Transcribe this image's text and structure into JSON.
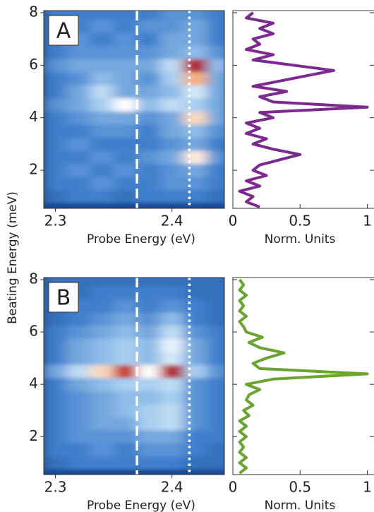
{
  "chart_data": [
    {
      "type": "heatmap",
      "panel_label": "A",
      "xlabel": "Probe Energy (eV)",
      "ylabel": "Beating Energy (meV)",
      "xlim": [
        2.29,
        2.445
      ],
      "ylim": [
        0.55,
        8.08
      ],
      "xticks": [
        2.3,
        2.4
      ],
      "yticks": [
        2,
        4,
        6,
        8
      ],
      "colormap": [
        "#1a4690",
        "#3f7fcc",
        "#a9cff0",
        "#ffffff",
        "#f5b07a",
        "#b01010"
      ],
      "vlines": [
        {
          "value": 2.37,
          "style": "dashed"
        },
        {
          "value": 2.415,
          "style": "dotted"
        }
      ],
      "x": [
        2.3,
        2.32,
        2.34,
        2.36,
        2.38,
        2.4,
        2.42,
        2.44
      ],
      "y": [
        1.0,
        1.5,
        2.0,
        2.5,
        3.0,
        3.5,
        4.0,
        4.5,
        5.0,
        5.5,
        6.0,
        6.5,
        7.0,
        7.5,
        8.0
      ],
      "z": [
        [
          0.15,
          0.2,
          0.2,
          0.15,
          0.2,
          0.2,
          0.2,
          0.15
        ],
        [
          0.2,
          0.2,
          0.25,
          0.2,
          0.2,
          0.25,
          0.25,
          0.2
        ],
        [
          0.2,
          0.25,
          0.2,
          0.25,
          0.2,
          0.25,
          0.3,
          0.2
        ],
        [
          0.2,
          0.2,
          0.25,
          0.2,
          0.25,
          0.3,
          0.65,
          0.25
        ],
        [
          0.2,
          0.25,
          0.2,
          0.2,
          0.2,
          0.25,
          0.3,
          0.2
        ],
        [
          0.2,
          0.2,
          0.25,
          0.25,
          0.2,
          0.3,
          0.35,
          0.25
        ],
        [
          0.2,
          0.25,
          0.3,
          0.3,
          0.25,
          0.3,
          0.7,
          0.3
        ],
        [
          0.25,
          0.3,
          0.4,
          0.6,
          0.35,
          0.45,
          0.4,
          0.3
        ],
        [
          0.2,
          0.3,
          0.45,
          0.3,
          0.3,
          0.35,
          0.5,
          0.3
        ],
        [
          0.2,
          0.25,
          0.35,
          0.3,
          0.25,
          0.4,
          0.8,
          0.3
        ],
        [
          0.25,
          0.3,
          0.3,
          0.3,
          0.3,
          0.45,
          1.0,
          0.35
        ],
        [
          0.2,
          0.25,
          0.25,
          0.25,
          0.25,
          0.3,
          0.35,
          0.25
        ],
        [
          0.2,
          0.25,
          0.2,
          0.25,
          0.2,
          0.3,
          0.3,
          0.2
        ],
        [
          0.2,
          0.2,
          0.25,
          0.2,
          0.25,
          0.25,
          0.3,
          0.2
        ],
        [
          0.2,
          0.2,
          0.2,
          0.2,
          0.2,
          0.25,
          0.25,
          0.2
        ]
      ]
    },
    {
      "type": "line",
      "xlabel": "Norm. Units",
      "xlim": [
        0,
        1.05
      ],
      "ylim": [
        0.55,
        8.08
      ],
      "xticks": [
        0,
        0.5,
        1
      ],
      "yticks": [
        2,
        4,
        6,
        8
      ],
      "y": [
        0.6,
        0.8,
        1.0,
        1.2,
        1.4,
        1.6,
        1.8,
        2.0,
        2.2,
        2.4,
        2.6,
        2.8,
        3.0,
        3.2,
        3.4,
        3.6,
        3.8,
        4.0,
        4.2,
        4.4,
        4.6,
        4.8,
        5.0,
        5.2,
        5.4,
        5.6,
        5.8,
        6.0,
        6.2,
        6.4,
        6.6,
        6.8,
        7.0,
        7.2,
        7.4,
        7.6,
        7.8,
        8.0
      ],
      "series": [
        {
          "color": "#7b2a90",
          "values": [
            0.2,
            0.1,
            0.15,
            0.05,
            0.2,
            0.1,
            0.25,
            0.15,
            0.2,
            0.35,
            0.5,
            0.3,
            0.15,
            0.25,
            0.1,
            0.2,
            0.1,
            0.3,
            0.2,
            1.0,
            0.3,
            0.2,
            0.4,
            0.15,
            0.35,
            0.55,
            0.75,
            0.45,
            0.15,
            0.3,
            0.1,
            0.2,
            0.15,
            0.3,
            0.2,
            0.3,
            0.1,
            0.15
          ]
        }
      ]
    },
    {
      "type": "heatmap",
      "panel_label": "B",
      "xlabel": "Probe Energy (eV)",
      "xlim": [
        2.29,
        2.445
      ],
      "ylim": [
        0.55,
        8.08
      ],
      "xticks": [
        2.3,
        2.4
      ],
      "yticks": [
        2,
        4,
        6,
        8
      ],
      "colormap": [
        "#1a4690",
        "#3f7fcc",
        "#a9cff0",
        "#ffffff",
        "#f5b07a",
        "#b01010"
      ],
      "vlines": [
        {
          "value": 2.37,
          "style": "dashed"
        },
        {
          "value": 2.415,
          "style": "dotted"
        }
      ],
      "x": [
        2.3,
        2.32,
        2.34,
        2.36,
        2.38,
        2.4,
        2.42,
        2.44
      ],
      "y": [
        1.0,
        1.5,
        2.0,
        2.5,
        3.0,
        3.5,
        4.0,
        4.5,
        5.0,
        5.5,
        6.0,
        6.5,
        7.0,
        7.5,
        8.0
      ],
      "z": [
        [
          0.15,
          0.2,
          0.2,
          0.2,
          0.2,
          0.2,
          0.15,
          0.15
        ],
        [
          0.2,
          0.2,
          0.25,
          0.2,
          0.25,
          0.25,
          0.2,
          0.15
        ],
        [
          0.2,
          0.25,
          0.25,
          0.25,
          0.3,
          0.3,
          0.2,
          0.2
        ],
        [
          0.2,
          0.25,
          0.3,
          0.3,
          0.4,
          0.45,
          0.25,
          0.2
        ],
        [
          0.2,
          0.25,
          0.3,
          0.35,
          0.4,
          0.45,
          0.25,
          0.2
        ],
        [
          0.2,
          0.25,
          0.3,
          0.35,
          0.35,
          0.4,
          0.25,
          0.2
        ],
        [
          0.2,
          0.3,
          0.35,
          0.4,
          0.4,
          0.45,
          0.25,
          0.2
        ],
        [
          0.3,
          0.45,
          0.7,
          0.95,
          0.6,
          1.0,
          0.4,
          0.25
        ],
        [
          0.2,
          0.3,
          0.35,
          0.4,
          0.35,
          0.5,
          0.3,
          0.2
        ],
        [
          0.2,
          0.3,
          0.35,
          0.4,
          0.35,
          0.55,
          0.3,
          0.2
        ],
        [
          0.2,
          0.25,
          0.3,
          0.35,
          0.3,
          0.45,
          0.25,
          0.2
        ],
        [
          0.15,
          0.2,
          0.25,
          0.3,
          0.25,
          0.35,
          0.2,
          0.15
        ],
        [
          0.15,
          0.2,
          0.2,
          0.25,
          0.2,
          0.25,
          0.2,
          0.15
        ],
        [
          0.15,
          0.15,
          0.2,
          0.2,
          0.2,
          0.2,
          0.15,
          0.15
        ],
        [
          0.15,
          0.15,
          0.15,
          0.15,
          0.15,
          0.15,
          0.15,
          0.15
        ]
      ]
    },
    {
      "type": "line",
      "xlabel": "Norm. Units",
      "xlim": [
        0,
        1.05
      ],
      "ylim": [
        0.55,
        8.08
      ],
      "xticks": [
        0,
        0.5,
        1
      ],
      "yticks": [
        2,
        4,
        6,
        8
      ],
      "y": [
        0.6,
        0.8,
        1.0,
        1.2,
        1.4,
        1.6,
        1.8,
        2.0,
        2.2,
        2.4,
        2.6,
        2.8,
        3.0,
        3.2,
        3.4,
        3.6,
        3.8,
        4.0,
        4.2,
        4.4,
        4.6,
        4.8,
        5.0,
        5.2,
        5.4,
        5.6,
        5.8,
        6.0,
        6.2,
        6.4,
        6.6,
        6.8,
        7.0,
        7.2,
        7.4,
        7.6,
        7.8,
        8.0
      ],
      "series": [
        {
          "color": "#6aa431",
          "values": [
            0.05,
            0.1,
            0.05,
            0.1,
            0.05,
            0.08,
            0.05,
            0.1,
            0.05,
            0.1,
            0.05,
            0.12,
            0.08,
            0.15,
            0.1,
            0.12,
            0.2,
            0.1,
            0.3,
            1.0,
            0.2,
            0.15,
            0.25,
            0.38,
            0.2,
            0.12,
            0.22,
            0.1,
            0.08,
            0.05,
            0.1,
            0.05,
            0.08,
            0.05,
            0.1,
            0.05,
            0.08,
            0.05
          ]
        }
      ]
    }
  ]
}
